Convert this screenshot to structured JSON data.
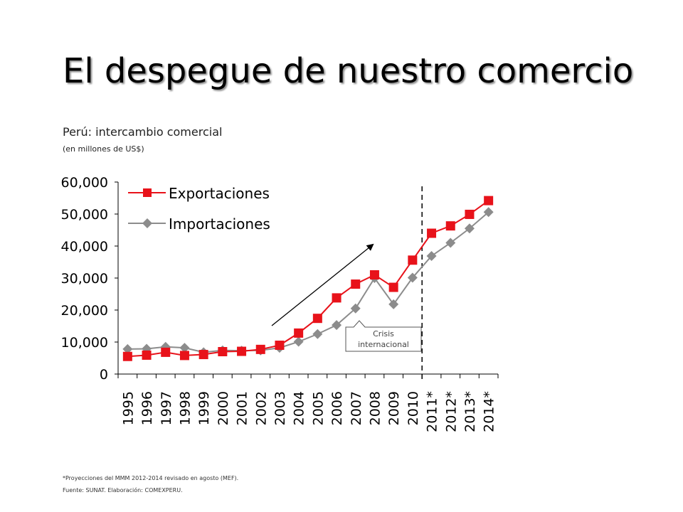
{
  "slide": {
    "title": "El despegue de nuestro comercio"
  },
  "chart_data": {
    "type": "line",
    "title": "Perú: intercambio comercial",
    "subtitle": "(en millones de US$)",
    "categories": [
      "1995",
      "1996",
      "1997",
      "1998",
      "1999",
      "2000",
      "2001",
      "2002",
      "2003",
      "2004",
      "2005",
      "2006",
      "2007",
      "2008",
      "2009",
      "2010",
      "2011*",
      "2012*",
      "2013*",
      "2014*"
    ],
    "series": [
      {
        "name": "Exportaciones",
        "color": "#e8121a",
        "marker": "square",
        "values": [
          5500,
          5900,
          6800,
          5800,
          6100,
          7000,
          7100,
          7700,
          9000,
          12800,
          17400,
          23800,
          28100,
          31000,
          27100,
          35600,
          44000,
          46300,
          49900,
          54200
        ]
      },
      {
        "name": "Importaciones",
        "color": "#8c8c8c",
        "marker": "diamond",
        "values": [
          7800,
          7900,
          8500,
          8200,
          6800,
          7400,
          7300,
          7400,
          8200,
          10100,
          12500,
          15300,
          20500,
          30000,
          21800,
          30100,
          36900,
          41000,
          45500,
          50600
        ]
      }
    ],
    "ylim": [
      0,
      60000
    ],
    "yticks": [
      "0",
      "10,000",
      "20,000",
      "30,000",
      "40,000",
      "50,000",
      "60,000"
    ],
    "legend_position": "top-left",
    "grid": false,
    "annotation": {
      "text_line1": "Crisis",
      "text_line2": "internacional"
    },
    "vertical_divider_after": "2010"
  },
  "footnote": "*Proyecciones del MMM 2012-2014 revisado en agosto (MEF).",
  "source": "Fuente: SUNAT. Elaboración: COMEXPERU."
}
